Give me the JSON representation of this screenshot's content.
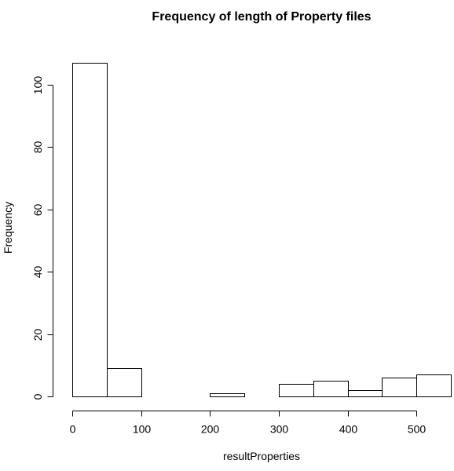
{
  "chart_data": {
    "type": "bar",
    "title": "Frequency of length of Property files",
    "xlabel": "resultProperties",
    "ylabel": "Frequency",
    "bins": [
      [
        0,
        50
      ],
      [
        50,
        100
      ],
      [
        100,
        150
      ],
      [
        150,
        200
      ],
      [
        200,
        250
      ],
      [
        250,
        300
      ],
      [
        300,
        350
      ],
      [
        350,
        400
      ],
      [
        400,
        450
      ],
      [
        450,
        500
      ],
      [
        500,
        550
      ]
    ],
    "values": [
      107,
      9,
      0,
      0,
      1,
      0,
      4,
      5,
      2,
      6,
      7
    ],
    "xticks": [
      0,
      100,
      200,
      300,
      400,
      500
    ],
    "yticks": [
      0,
      20,
      40,
      60,
      80,
      100
    ],
    "xlim": [
      0,
      550
    ],
    "ylim": [
      0,
      110
    ],
    "grid": false,
    "legend": "none",
    "bar_fill": "#ffffff",
    "bar_stroke": "#000000"
  }
}
